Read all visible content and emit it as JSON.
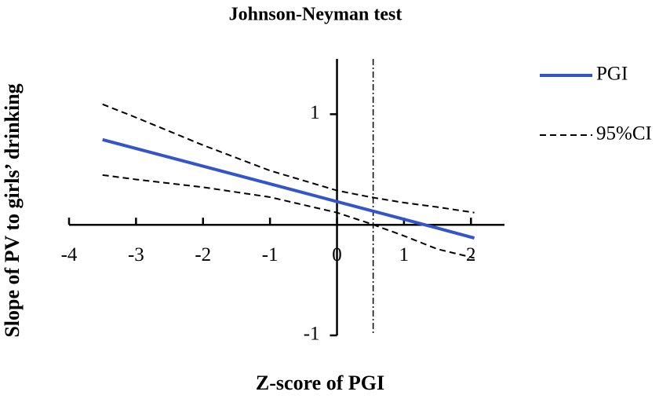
{
  "chart_data": {
    "type": "line",
    "title": "Johnson-Neyman test",
    "x_label": "Z-score of PGI",
    "y_label": "Slope of PV to girls’ drinking",
    "x": [
      -3.5,
      -3,
      -2,
      -1,
      0,
      0.5,
      1,
      1.5,
      2.05
    ],
    "series": [
      {
        "name": "PGI",
        "color": "#3355cc",
        "values": [
          0.77,
          0.69,
          0.53,
          0.37,
          0.21,
          0.13,
          0.05,
          -0.03,
          -0.12
        ]
      }
    ],
    "ci": {
      "name": "95%CI",
      "color": "#000000",
      "upper": [
        1.09,
        0.97,
        0.72,
        0.49,
        0.31,
        0.25,
        0.2,
        0.16,
        0.11
      ],
      "lower": [
        0.45,
        0.41,
        0.34,
        0.25,
        0.11,
        0.01,
        -0.1,
        -0.22,
        -0.3
      ]
    },
    "jn_point": 0.54,
    "xlim": [
      -4,
      2.5
    ],
    "ylim": [
      -1,
      1.5
    ],
    "xticks": [
      -4,
      -3,
      -2,
      -1,
      0,
      1,
      2
    ],
    "yticks": [
      -1,
      1
    ],
    "legend": "right"
  }
}
